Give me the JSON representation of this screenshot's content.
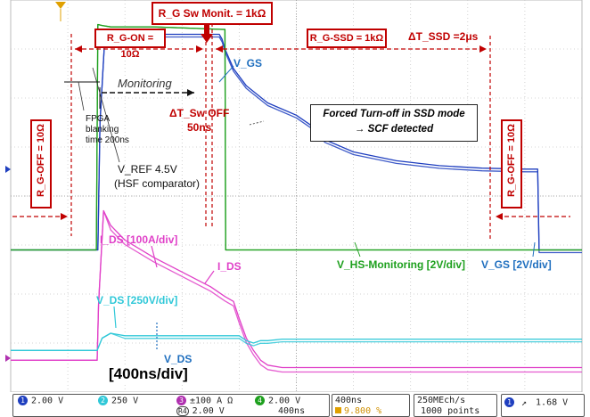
{
  "chart_data": {
    "type": "line",
    "title": "",
    "xlabel": "",
    "ylabel": "",
    "time_div_label": "[400ns/div]",
    "x_unit": "ns",
    "x_range": [
      0,
      4000
    ],
    "y_divisions": [
      -4,
      4
    ],
    "grid": true,
    "series": [
      {
        "name": "VGS",
        "scale": "[2V/div]",
        "color": "#1f3fbf",
        "x": [
          0,
          610,
          625,
          660,
          700,
          800,
          1000,
          1400,
          1460,
          1480,
          1500,
          1560,
          1650,
          1800,
          2000,
          2100,
          2200,
          2400,
          2700,
          3000,
          3300,
          3600,
          3690,
          3700,
          3720,
          4000
        ],
        "y": [
          -1.1,
          -1.1,
          1.5,
          3.3,
          3.35,
          3.35,
          3.3,
          3.3,
          3.3,
          3.2,
          3.0,
          2.6,
          2.25,
          1.9,
          1.65,
          1.45,
          1.15,
          0.9,
          0.72,
          0.62,
          0.57,
          0.55,
          0.55,
          -1.1,
          -1.1,
          -1.1
        ]
      },
      {
        "name": "VHS-Monitoring",
        "scale": "[2V/div]",
        "color": "#1ea01e",
        "x": [
          0,
          600,
          610,
          640,
          700,
          1000,
          1300,
          1480,
          1500,
          1505,
          4000
        ],
        "y": [
          -1.1,
          -1.1,
          3.5,
          3.48,
          3.45,
          3.45,
          3.42,
          3.4,
          3.4,
          -1.1,
          -1.1
        ]
      },
      {
        "name": "IDS",
        "scale": "[100A/div]",
        "color": "#e040c8",
        "x": [
          0,
          605,
          615,
          650,
          700,
          800,
          1000,
          1200,
          1400,
          1500,
          1560,
          1600,
          1650,
          1700,
          1750,
          1800,
          1900,
          2100,
          4000
        ],
        "y": [
          -3.35,
          -3.35,
          -2.2,
          -0.3,
          -0.6,
          -0.9,
          -1.25,
          -1.55,
          -1.85,
          -2.05,
          -2.15,
          -2.5,
          -2.9,
          -3.15,
          -3.35,
          -3.45,
          -3.5,
          -3.5,
          -3.5
        ]
      },
      {
        "name": "VDS",
        "scale": "[250V/div]",
        "color": "#30c8d8",
        "x": [
          0,
          605,
          640,
          700,
          800,
          1000,
          1300,
          1500,
          1600,
          1650,
          1700,
          1750,
          1800,
          1900,
          4000
        ],
        "y": [
          -3.15,
          -3.15,
          -2.9,
          -2.8,
          -2.85,
          -2.85,
          -2.85,
          -2.85,
          -2.85,
          -2.95,
          -3.0,
          -2.95,
          -2.95,
          -2.92,
          -2.92
        ]
      }
    ],
    "annotations": {
      "rg_sw_monit": "R_G Sw Monit. = 1kΩ",
      "rg_on": "R_G-ON = 10Ω",
      "rg_ssd": "R_G-SSD = 1kΩ",
      "dt_ssd": "ΔT_SSD =2μs",
      "rg_off_left": "R_G-OFF = 10Ω",
      "rg_off_right": "R_G-OFF = 10Ω",
      "vgs_top": "V_GS",
      "monitoring": "Monitoring",
      "fpga_1": "FPGA",
      "fpga_2": "blanking",
      "fpga_3": "time 200ns",
      "dt_sw_off_1": "ΔT_Sw OFF",
      "dt_sw_off_2": "50ns",
      "forced_1": "Forced Turn-off in SSD mode",
      "forced_2": "→ SCF detected",
      "vref_1": "V_REF 4.5V",
      "vref_2": "(HSF comparator)",
      "ids_scale": "I_DS [100A/div]",
      "ids_mid": "I_DS",
      "vds_scale": "V_DS [250V/div]",
      "vds_low": "V_DS",
      "vhs_mon": "V_HS-Monitoring [2V/div]",
      "vgs_scale": "V_GS [2V/div]",
      "time_div": "[400ns/div]"
    }
  },
  "status": {
    "ch1_num": "1",
    "ch1": "2.00 V",
    "ch2_num": "2",
    "ch2": "250 V",
    "ch3_num": "3",
    "ch3": "±100 A",
    "ch3_unit": "Ω",
    "ch4_num": "4",
    "ch4": "2.00 V",
    "ref4_num": "R4",
    "ref4": "2.00 V",
    "ref4_time": "400ns",
    "timebase": "400ns",
    "trigpos": "9.800 %",
    "samplerate": "250MEch/s",
    "points": "1000 points",
    "trig_ch": "1",
    "trig_level": "1.68 V"
  },
  "colors": {
    "ch1": "#1f3fbf",
    "ch2": "#30c8d8",
    "ch3": "#e040c8",
    "ch4": "#1ea01e",
    "annot": "#c00000"
  }
}
